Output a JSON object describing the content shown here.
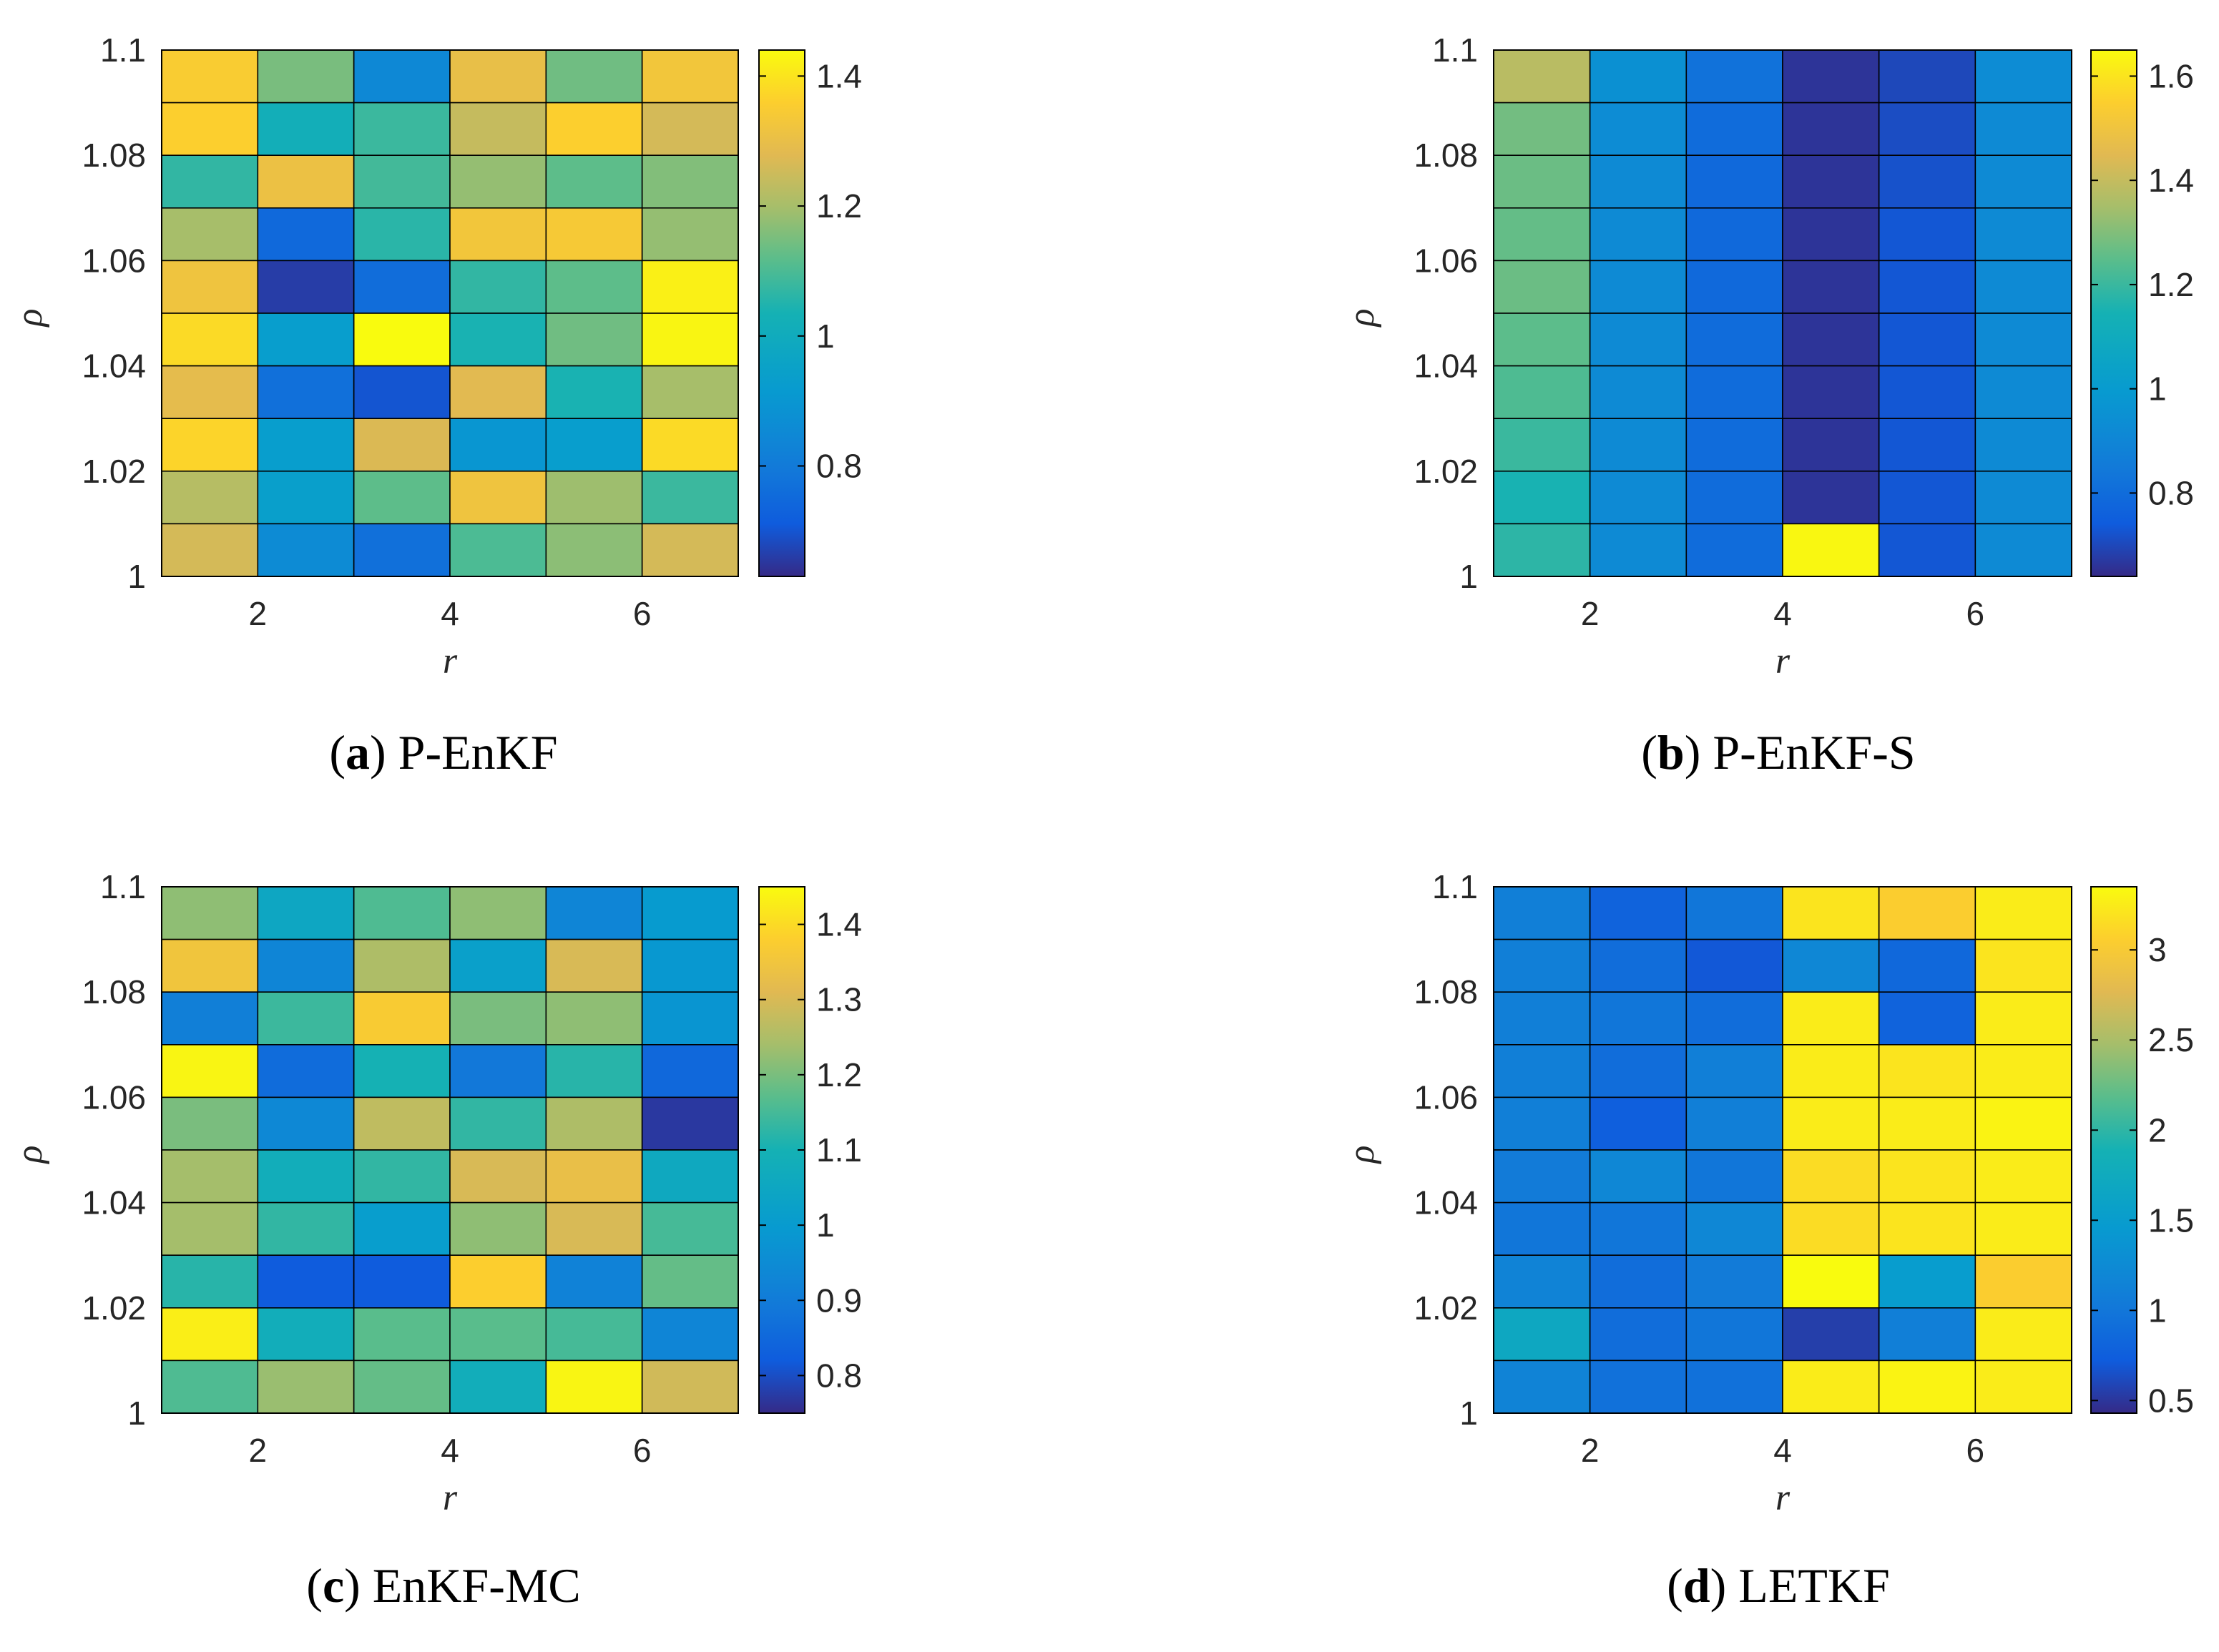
{
  "figure": {
    "x_ticks": [
      "2",
      "4",
      "6"
    ],
    "y_ticks": [
      "1",
      "1.02",
      "1.04",
      "1.06",
      "1.08",
      "1.1"
    ],
    "x_label": "r",
    "y_label": "ρ"
  },
  "chart_data": [
    {
      "type": "heatmap",
      "caption_letter": "a",
      "caption_text": "P-EnKF",
      "xlabel": "r",
      "ylabel": "ρ",
      "x": [
        1,
        2,
        3,
        4,
        5,
        6,
        7
      ],
      "y": [
        1,
        1.01,
        1.02,
        1.03,
        1.04,
        1.05,
        1.06,
        1.07,
        1.08,
        1.09,
        1.1
      ],
      "xlim": [
        1,
        7
      ],
      "ylim": [
        1,
        1.1
      ],
      "colorbar": {
        "min": 0.63,
        "max": 1.44,
        "ticks": [
          0.8,
          1,
          1.2,
          1.4
        ],
        "tick_labels": [
          "0.8",
          "1",
          "1.2",
          "1.4"
        ]
      },
      "values_top_to_bottom": [
        [
          1.35,
          1.15,
          0.85,
          1.3,
          1.14,
          1.33
        ],
        [
          1.36,
          1.02,
          1.08,
          1.24,
          1.36,
          1.26
        ],
        [
          1.07,
          1.31,
          1.09,
          1.18,
          1.12,
          1.16
        ],
        [
          1.2,
          0.75,
          1.06,
          1.33,
          1.34,
          1.18
        ],
        [
          1.32,
          0.66,
          0.76,
          1.07,
          1.12,
          1.42
        ],
        [
          1.38,
          0.93,
          1.44,
          1.04,
          1.14,
          1.43
        ],
        [
          1.29,
          0.77,
          0.7,
          1.28,
          1.04,
          1.2
        ],
        [
          1.37,
          0.93,
          1.27,
          0.9,
          0.93,
          1.38
        ],
        [
          1.22,
          0.94,
          1.12,
          1.32,
          1.19,
          1.08
        ],
        [
          1.26,
          0.86,
          0.77,
          1.1,
          1.17,
          1.26
        ]
      ]
    },
    {
      "type": "heatmap",
      "caption_letter": "b",
      "caption_text": "P-EnKF-S",
      "xlabel": "r",
      "ylabel": "ρ",
      "x": [
        1,
        2,
        3,
        4,
        5,
        6,
        7
      ],
      "y": [
        1,
        1.01,
        1.02,
        1.03,
        1.04,
        1.05,
        1.06,
        1.07,
        1.08,
        1.09,
        1.1
      ],
      "xlim": [
        1,
        7
      ],
      "ylim": [
        1,
        1.1
      ],
      "colorbar": {
        "min": 0.64,
        "max": 1.65,
        "ticks": [
          0.8,
          1,
          1.2,
          1.4,
          1.6
        ],
        "tick_labels": [
          "0.8",
          "1",
          "1.2",
          "1.4",
          "1.6"
        ]
      },
      "values_top_to_bottom": [
        [
          1.38,
          0.95,
          0.82,
          0.66,
          0.7,
          0.93
        ],
        [
          1.28,
          0.93,
          0.8,
          0.66,
          0.71,
          0.92
        ],
        [
          1.27,
          0.92,
          0.79,
          0.66,
          0.72,
          0.92
        ],
        [
          1.26,
          0.92,
          0.79,
          0.66,
          0.73,
          0.92
        ],
        [
          1.27,
          0.92,
          0.79,
          0.66,
          0.73,
          0.92
        ],
        [
          1.25,
          0.92,
          0.8,
          0.66,
          0.73,
          0.92
        ],
        [
          1.23,
          0.92,
          0.8,
          0.66,
          0.73,
          0.92
        ],
        [
          1.2,
          0.92,
          0.8,
          0.66,
          0.73,
          0.92
        ],
        [
          1.15,
          0.92,
          0.8,
          0.66,
          0.73,
          0.92
        ],
        [
          1.18,
          0.92,
          0.8,
          1.64,
          0.73,
          0.92
        ]
      ]
    },
    {
      "type": "heatmap",
      "caption_letter": "c",
      "caption_text": "EnKF-MC",
      "xlabel": "r",
      "ylabel": "ρ",
      "x": [
        1,
        2,
        3,
        4,
        5,
        6,
        7
      ],
      "y": [
        1,
        1.01,
        1.02,
        1.03,
        1.04,
        1.05,
        1.06,
        1.07,
        1.08,
        1.09,
        1.1
      ],
      "xlim": [
        1,
        7
      ],
      "ylim": [
        1,
        1.1
      ],
      "colorbar": {
        "min": 0.75,
        "max": 1.45,
        "ticks": [
          0.8,
          0.9,
          1,
          1.1,
          1.2,
          1.3,
          1.4
        ],
        "tick_labels": [
          "0.8",
          "0.9",
          "1",
          "1.1",
          "1.2",
          "1.3",
          "1.4"
        ]
      },
      "values_top_to_bottom": [
        [
          1.22,
          1.05,
          1.16,
          1.22,
          0.93,
          1.0
        ],
        [
          1.35,
          0.93,
          1.25,
          1.02,
          1.3,
          0.99
        ],
        [
          0.91,
          1.14,
          1.37,
          1.2,
          1.22,
          0.98
        ],
        [
          1.44,
          0.86,
          1.1,
          0.89,
          1.12,
          0.85
        ],
        [
          1.2,
          0.94,
          1.27,
          1.13,
          1.25,
          0.77
        ],
        [
          1.24,
          1.08,
          1.13,
          1.3,
          1.33,
          1.06
        ],
        [
          1.24,
          1.13,
          1.01,
          1.22,
          1.3,
          1.15
        ],
        [
          1.12,
          0.82,
          0.82,
          1.38,
          0.92,
          1.18
        ],
        [
          1.43,
          1.08,
          1.17,
          1.17,
          1.15,
          0.93
        ],
        [
          1.16,
          1.23,
          1.18,
          1.08,
          1.44,
          1.29
        ]
      ]
    },
    {
      "type": "heatmap",
      "caption_letter": "d",
      "caption_text": "LETKF",
      "xlabel": "r",
      "ylabel": "ρ",
      "x": [
        1,
        2,
        3,
        4,
        5,
        6,
        7
      ],
      "y": [
        1,
        1.01,
        1.02,
        1.03,
        1.04,
        1.05,
        1.06,
        1.07,
        1.08,
        1.09,
        1.1
      ],
      "xlim": [
        1,
        7
      ],
      "ylim": [
        1,
        1.1
      ],
      "colorbar": {
        "min": 0.43,
        "max": 3.35,
        "ticks": [
          0.5,
          1,
          1.5,
          2,
          2.5,
          3
        ],
        "tick_labels": [
          "0.5",
          "1",
          "1.5",
          "2",
          "2.5",
          "3"
        ]
      },
      "values_top_to_bottom": [
        [
          1.1,
          0.8,
          1.0,
          3.2,
          3.05,
          3.25
        ],
        [
          1.1,
          0.9,
          0.7,
          1.2,
          0.85,
          3.2
        ],
        [
          1.1,
          1.0,
          0.9,
          3.25,
          0.8,
          3.25
        ],
        [
          1.1,
          0.9,
          1.1,
          3.25,
          3.2,
          3.25
        ],
        [
          1.1,
          0.75,
          1.1,
          3.25,
          3.25,
          3.3
        ],
        [
          1.05,
          1.2,
          1.0,
          3.15,
          3.2,
          3.25
        ],
        [
          1.0,
          1.0,
          1.2,
          3.15,
          3.2,
          3.25
        ],
        [
          1.15,
          0.9,
          1.05,
          3.35,
          1.5,
          3.05
        ],
        [
          1.7,
          0.9,
          1.0,
          0.55,
          1.1,
          3.25
        ],
        [
          1.15,
          0.95,
          0.95,
          3.25,
          3.3,
          3.25
        ]
      ]
    }
  ]
}
